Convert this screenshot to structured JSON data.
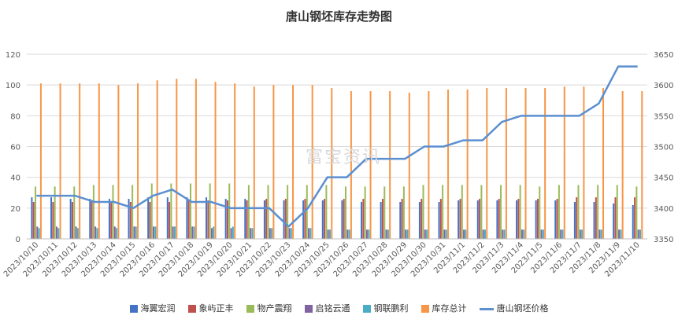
{
  "chart_data": {
    "type": "bar",
    "title": "唐山钢坯库存走势图",
    "watermark": "富宝资讯",
    "categories": [
      "2023/10/10",
      "2023/10/11",
      "2023/10/12",
      "2023/10/13",
      "2023/10/14",
      "2023/10/15",
      "2023/10/16",
      "2023/10/17",
      "2023/10/18",
      "2023/10/19",
      "2023/10/20",
      "2023/10/21",
      "2023/10/22",
      "2023/10/23",
      "2023/10/24",
      "2023/10/25",
      "2023/10/26",
      "2023/10/27",
      "2023/10/28",
      "2023/10/29",
      "2023/10/30",
      "2023/10/31",
      "2023/11/1",
      "2023/11/2",
      "2023/11/3",
      "2023/11/4",
      "2023/11/5",
      "2023/11/6",
      "2023/11/7",
      "2023/11/8",
      "2023/11/9",
      "2023/11/10"
    ],
    "left_axis": {
      "ylim": [
        0,
        120
      ],
      "ticks": [
        0,
        20,
        40,
        60,
        80,
        100,
        120
      ]
    },
    "right_axis": {
      "ylim": [
        3350,
        3650
      ],
      "ticks": [
        3350,
        3400,
        3450,
        3500,
        3550,
        3600,
        3650
      ]
    },
    "grid": true,
    "legend_position": "bottom",
    "series": [
      {
        "name": "海翼宏润",
        "color": "#4472c4",
        "type": "bar",
        "values": [
          27,
          27,
          26,
          26,
          26,
          26,
          27,
          27,
          27,
          27,
          26,
          26,
          25,
          25,
          25,
          25,
          25,
          24,
          24,
          24,
          24,
          24,
          25,
          25,
          25,
          25,
          25,
          25,
          24,
          24,
          23,
          22
        ]
      },
      {
        "name": "象屿正丰",
        "color": "#c0504d",
        "type": "bar",
        "values": [
          24,
          24,
          24,
          24,
          24,
          24,
          24,
          24,
          25,
          25,
          25,
          25,
          26,
          26,
          26,
          26,
          26,
          26,
          26,
          26,
          26,
          26,
          26,
          26,
          26,
          26,
          26,
          26,
          27,
          27,
          27,
          27
        ]
      },
      {
        "name": "物产震翔",
        "color": "#9bbb59",
        "type": "bar",
        "values": [
          34,
          34,
          34,
          35,
          35,
          35,
          36,
          36,
          36,
          36,
          36,
          35,
          35,
          35,
          35,
          35,
          34,
          34,
          34,
          34,
          35,
          35,
          35,
          35,
          35,
          35,
          34,
          35,
          35,
          35,
          35,
          34
        ]
      },
      {
        "name": "启铭云通",
        "color": "#8064a2",
        "type": "bar",
        "values": [
          8,
          8,
          8,
          8,
          8,
          8,
          8,
          8,
          8,
          7,
          7,
          7,
          7,
          7,
          7,
          6,
          6,
          6,
          6,
          6,
          6,
          6,
          6,
          6,
          6,
          6,
          6,
          6,
          6,
          6,
          6,
          6
        ]
      },
      {
        "name": "钢联鹏利",
        "color": "#4bacc6",
        "type": "bar",
        "values": [
          7,
          7,
          7,
          7,
          7,
          8,
          8,
          8,
          8,
          8,
          8,
          7,
          7,
          7,
          7,
          6,
          6,
          6,
          6,
          6,
          6,
          6,
          6,
          6,
          6,
          6,
          6,
          6,
          6,
          6,
          6,
          6
        ]
      },
      {
        "name": "库存总计",
        "color": "#f79646",
        "type": "bar",
        "values": [
          101,
          101,
          101,
          101,
          100,
          101,
          103,
          104,
          104,
          102,
          101,
          99,
          100,
          100,
          100,
          98,
          96,
          96,
          96,
          95,
          96,
          97,
          97,
          98,
          98,
          98,
          98,
          99,
          99,
          98,
          96,
          96
        ]
      },
      {
        "name": "唐山钢坯价格",
        "color": "#5b8fd0",
        "type": "line",
        "axis": "right",
        "values": [
          3420,
          3420,
          3420,
          3410,
          3410,
          3400,
          3420,
          3430,
          3410,
          3410,
          3400,
          3400,
          3400,
          3370,
          3400,
          3450,
          3450,
          3480,
          3480,
          3480,
          3500,
          3500,
          3510,
          3510,
          3540,
          3550,
          3550,
          3550,
          3550,
          3570,
          3630,
          3630
        ]
      }
    ]
  }
}
